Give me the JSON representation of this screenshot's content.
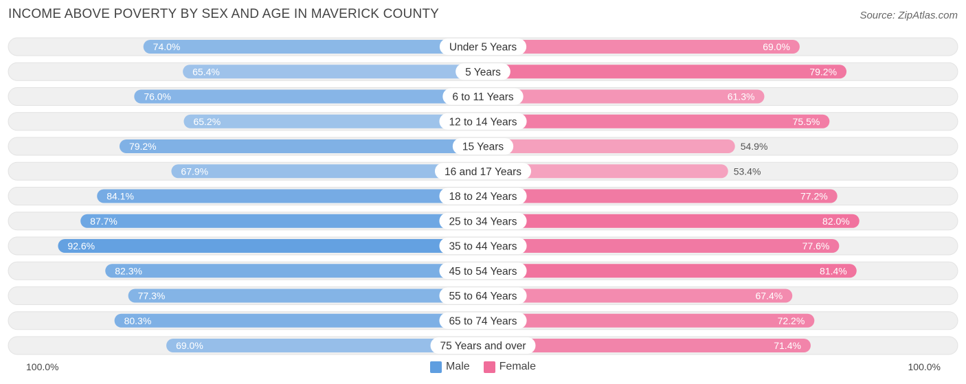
{
  "header": {
    "title": "INCOME ABOVE POVERTY BY SEX AND AGE IN MAVERICK COUNTY",
    "source": "Source: ZipAtlas.com"
  },
  "axis": {
    "left_label": "100.0%",
    "right_label": "100.0%"
  },
  "legend": {
    "male_label": "Male",
    "female_label": "Female"
  },
  "colors": {
    "male_dark": "#5f9ee0",
    "male_light": "#a9c9ec",
    "female_dark": "#f06d9a",
    "female_light": "#f6a8c3",
    "track": "#f0f0f0"
  },
  "chart_data": {
    "type": "bar",
    "orientation": "horizontal-diverging",
    "title": "INCOME ABOVE POVERTY BY SEX AND AGE IN MAVERICK COUNTY",
    "xlim": [
      0,
      100
    ],
    "categories": [
      "Under 5 Years",
      "5 Years",
      "6 to 11 Years",
      "12 to 14 Years",
      "15 Years",
      "16 and 17 Years",
      "18 to 24 Years",
      "25 to 34 Years",
      "35 to 44 Years",
      "45 to 54 Years",
      "55 to 64 Years",
      "65 to 74 Years",
      "75 Years and over"
    ],
    "series": [
      {
        "name": "Male",
        "values": [
          74.0,
          65.4,
          76.0,
          65.2,
          79.2,
          67.9,
          84.1,
          87.7,
          92.6,
          82.3,
          77.3,
          80.3,
          69.0
        ]
      },
      {
        "name": "Female",
        "values": [
          69.0,
          79.2,
          61.3,
          75.5,
          54.9,
          53.4,
          77.2,
          82.0,
          77.6,
          81.4,
          67.4,
          72.2,
          71.4
        ]
      }
    ],
    "legend_position": "bottom-center"
  }
}
